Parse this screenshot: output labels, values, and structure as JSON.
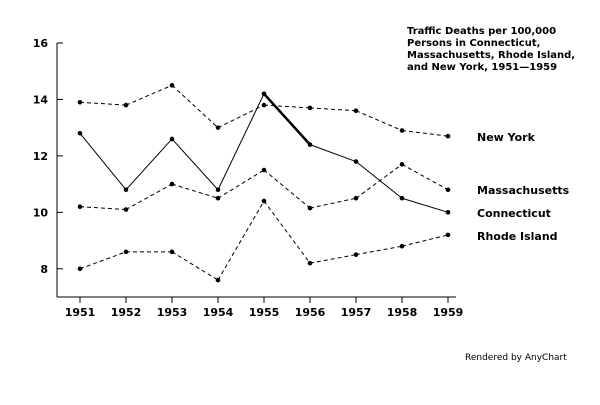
{
  "chart_data": {
    "type": "line",
    "title_lines": [
      "Traffic Deaths per 100,000",
      "Persons in Connecticut,",
      "Massachusetts, Rhode Island,",
      "and New York, 1951—1959"
    ],
    "x": [
      1951,
      1952,
      1953,
      1954,
      1955,
      1956,
      1957,
      1958,
      1959
    ],
    "ylim": [
      7,
      16
    ],
    "yticks": [
      8,
      10,
      12,
      14,
      16
    ],
    "grid": false,
    "series": [
      {
        "name": "New York",
        "style": "dashed",
        "values": [
          13.9,
          13.8,
          14.5,
          13.0,
          13.8,
          13.7,
          13.6,
          12.9,
          12.7
        ]
      },
      {
        "name": "Connecticut",
        "style": "solid",
        "values": [
          12.8,
          10.8,
          12.6,
          10.8,
          14.2,
          12.4,
          11.8,
          10.5,
          10.0
        ]
      },
      {
        "name": "Massachusetts",
        "style": "dashed",
        "values": [
          10.2,
          10.1,
          11.0,
          10.5,
          11.5,
          10.15,
          10.5,
          11.7,
          10.8
        ]
      },
      {
        "name": "Rhode Island",
        "style": "dashed",
        "values": [
          8.0,
          8.6,
          8.6,
          7.6,
          10.4,
          8.2,
          8.5,
          8.8,
          9.2
        ]
      }
    ],
    "credit": "Rendered by AnyChart"
  }
}
